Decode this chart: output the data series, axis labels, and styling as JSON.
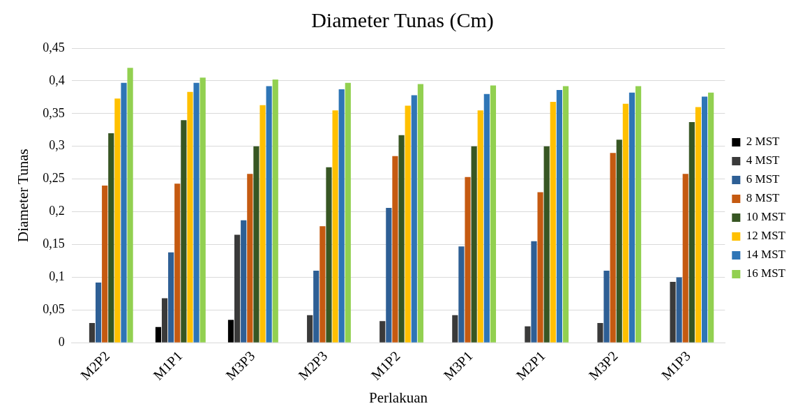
{
  "chart_data": {
    "type": "bar",
    "title": "Diameter Tunas (Cm)",
    "xlabel": "Perlakuan",
    "ylabel": "Diameter Tunas",
    "categories": [
      "M2P2",
      "M1P1",
      "M3P3",
      "M2P3",
      "M1P2",
      "M3P1",
      "M2P1",
      "M3P2",
      "M1P3"
    ],
    "series": [
      {
        "name": "2 MST",
        "color": "#000000",
        "values": [
          0,
          0.024,
          0.035,
          0,
          0,
          0,
          0,
          0,
          0
        ]
      },
      {
        "name": "4 MST",
        "color": "#3a3a3a",
        "values": [
          0.03,
          0.068,
          0.165,
          0.042,
          0.033,
          0.042,
          0.025,
          0.03,
          0.093
        ]
      },
      {
        "name": "6 MST",
        "color": "#2e5f95",
        "values": [
          0.092,
          0.138,
          0.187,
          0.11,
          0.206,
          0.147,
          0.155,
          0.11,
          0.1
        ]
      },
      {
        "name": "8 MST",
        "color": "#c55a11",
        "values": [
          0.24,
          0.243,
          0.258,
          0.178,
          0.285,
          0.253,
          0.23,
          0.29,
          0.258
        ]
      },
      {
        "name": "10 MST",
        "color": "#375623",
        "values": [
          0.32,
          0.34,
          0.3,
          0.268,
          0.317,
          0.3,
          0.3,
          0.31,
          0.337
        ]
      },
      {
        "name": "12 MST",
        "color": "#ffc000",
        "values": [
          0.373,
          0.383,
          0.363,
          0.355,
          0.362,
          0.355,
          0.368,
          0.365,
          0.36
        ]
      },
      {
        "name": "14 MST",
        "color": "#2e75b6",
        "values": [
          0.397,
          0.397,
          0.392,
          0.387,
          0.378,
          0.38,
          0.386,
          0.382,
          0.376
        ]
      },
      {
        "name": "16 MST",
        "color": "#92d050",
        "values": [
          0.42,
          0.405,
          0.402,
          0.397,
          0.395,
          0.393,
          0.392,
          0.392,
          0.382
        ]
      }
    ],
    "ylim": [
      0,
      0.45
    ],
    "yticks": [
      0,
      {
        "value": 0.05,
        "label": "0,05"
      },
      {
        "value": 0.1,
        "label": "0,1"
      },
      {
        "value": 0.15,
        "label": "0,15"
      },
      {
        "value": 0.2,
        "label": "0,2"
      },
      {
        "value": 0.25,
        "label": "0,25"
      },
      {
        "value": 0.3,
        "label": "0,3"
      },
      {
        "value": 0.35,
        "label": "0,35"
      },
      {
        "value": 0.4,
        "label": "0,4"
      },
      {
        "value": 0.45,
        "label": "0,45"
      }
    ],
    "grid": "y",
    "legend": "right"
  }
}
